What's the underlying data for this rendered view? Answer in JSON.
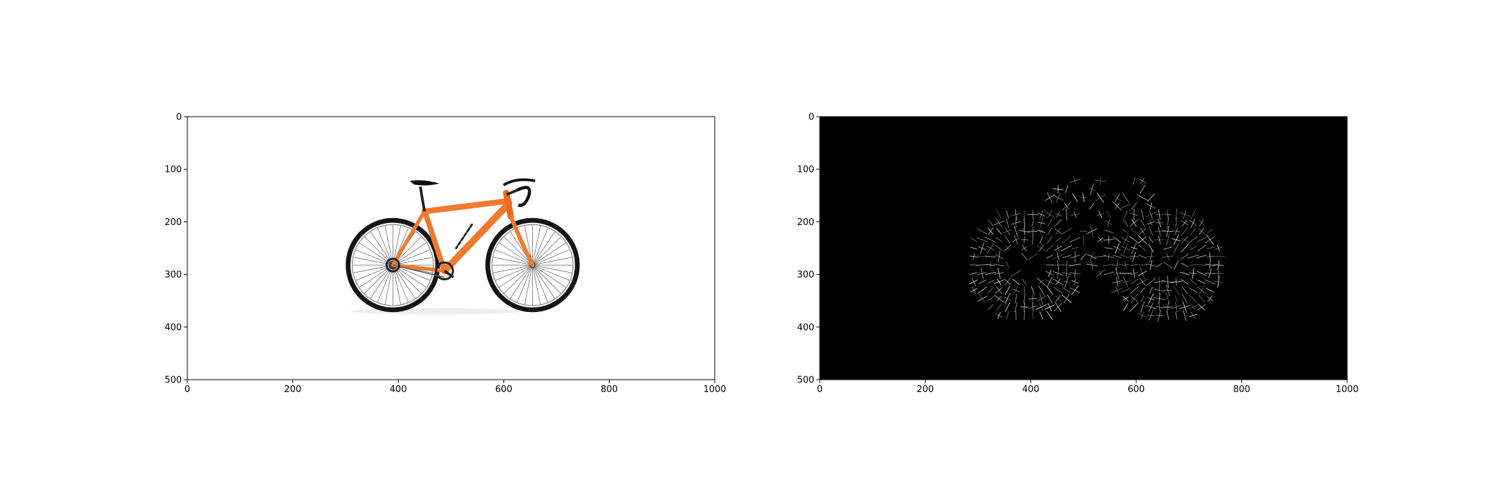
{
  "figure": {
    "background": "#ffffff"
  },
  "chart_data": [
    {
      "type": "image",
      "content": "photo of a road bicycle with an orange frame and black wheels on a white background",
      "background_color": "#ffffff",
      "frame_color": "#f07a2f",
      "x_range": [
        0,
        1000
      ],
      "y_range": [
        500,
        0
      ],
      "x_ticks": [
        0,
        200,
        400,
        600,
        800,
        1000
      ],
      "y_ticks": [
        0,
        100,
        200,
        300,
        400,
        500
      ],
      "x_tick_labels": [
        "0",
        "200",
        "400",
        "600",
        "800",
        "1000"
      ],
      "y_tick_labels": [
        "0",
        "100",
        "200",
        "300",
        "400",
        "500"
      ],
      "title": "",
      "xlabel": "",
      "ylabel": ""
    },
    {
      "type": "image",
      "content": "HOG (histogram of oriented gradients) visualization of the bicycle: short light gradient strokes on a black background",
      "background_color": "#000000",
      "stroke_color": "#d8d8d8",
      "x_range": [
        0,
        1000
      ],
      "y_range": [
        500,
        0
      ],
      "x_ticks": [
        0,
        200,
        400,
        600,
        800,
        1000
      ],
      "y_ticks": [
        0,
        100,
        200,
        300,
        400,
        500
      ],
      "x_tick_labels": [
        "0",
        "200",
        "400",
        "600",
        "800",
        "1000"
      ],
      "y_tick_labels": [
        "0",
        "100",
        "200",
        "300",
        "400",
        "500"
      ],
      "title": "",
      "xlabel": "",
      "ylabel": ""
    }
  ]
}
